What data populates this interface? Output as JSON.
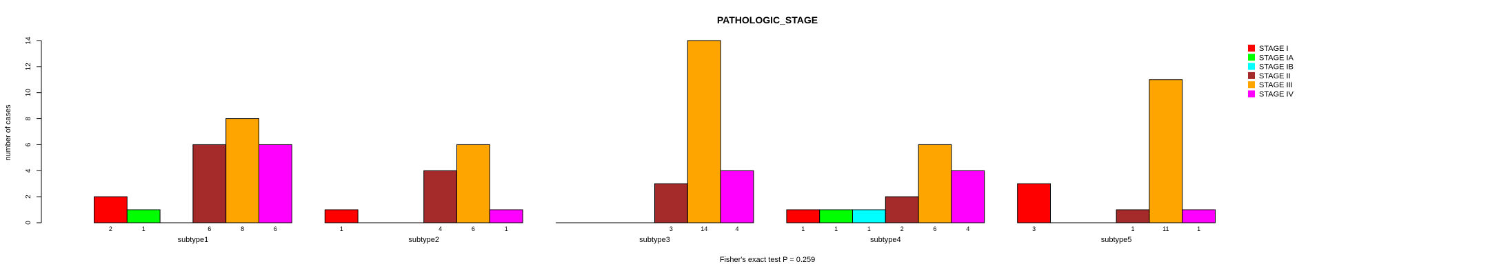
{
  "chart_data": {
    "type": "bar",
    "title": "PATHOLOGIC_STAGE",
    "ylabel": "number of cases",
    "xlabel": "",
    "footnote": "Fisher's exact test P = 0.259",
    "ylim": [
      0,
      14
    ],
    "yticks": [
      0,
      2,
      4,
      6,
      8,
      10,
      12,
      14
    ],
    "categories": [
      "subtype1",
      "subtype2",
      "subtype3",
      "subtype4",
      "subtype5"
    ],
    "series": [
      {
        "name": "STAGE I",
        "color": "#ff0000",
        "values": [
          2,
          1,
          0,
          1,
          3
        ]
      },
      {
        "name": "STAGE IA",
        "color": "#00ff00",
        "values": [
          1,
          0,
          0,
          1,
          0
        ]
      },
      {
        "name": "STAGE IB",
        "color": "#00ffff",
        "values": [
          0,
          0,
          0,
          1,
          0
        ]
      },
      {
        "name": "STAGE II",
        "color": "#a52a2a",
        "values": [
          6,
          4,
          3,
          2,
          1
        ]
      },
      {
        "name": "STAGE III",
        "color": "#ffa500",
        "values": [
          8,
          6,
          14,
          6,
          11
        ]
      },
      {
        "name": "STAGE IV",
        "color": "#ff00ff",
        "values": [
          6,
          1,
          4,
          4,
          1
        ]
      }
    ],
    "legend_position": "top-right"
  }
}
